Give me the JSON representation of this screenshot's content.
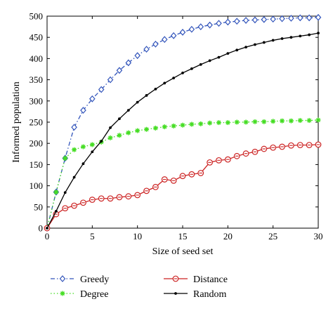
{
  "chart_data": {
    "type": "line",
    "title": "",
    "xlabel": "Size of seed set",
    "ylabel": "Informed population",
    "xlim": [
      0,
      30
    ],
    "ylim": [
      0,
      500
    ],
    "xticks": [
      0,
      5,
      10,
      15,
      20,
      25,
      30
    ],
    "yticks": [
      0,
      50,
      100,
      150,
      200,
      250,
      300,
      350,
      400,
      450,
      500
    ],
    "grid": false,
    "legend_placement": "bottom",
    "series": [
      {
        "name": "Greedy",
        "color": "#3355bb",
        "line_style": "dash-dot",
        "marker": "diamond-open",
        "x": [
          0,
          1,
          2,
          3,
          4,
          5,
          6,
          7,
          8,
          9,
          10,
          11,
          12,
          13,
          14,
          15,
          16,
          17,
          18,
          19,
          20,
          21,
          22,
          23,
          24,
          25,
          26,
          27,
          28,
          29,
          30
        ],
        "y": [
          0,
          85,
          165,
          238,
          278,
          305,
          327,
          350,
          372,
          390,
          407,
          422,
          434,
          445,
          454,
          462,
          469,
          475,
          479,
          483,
          486,
          488,
          490,
          491,
          492,
          493,
          494,
          495,
          496,
          496,
          497
        ]
      },
      {
        "name": "Degree",
        "color": "#44dd22",
        "line_style": "dotted",
        "marker": "star",
        "x": [
          0,
          1,
          2,
          3,
          4,
          5,
          6,
          7,
          8,
          9,
          10,
          11,
          12,
          13,
          14,
          15,
          16,
          17,
          18,
          19,
          20,
          21,
          22,
          23,
          24,
          25,
          26,
          27,
          28,
          29,
          30
        ],
        "y": [
          0,
          85,
          165,
          185,
          192,
          197,
          203,
          213,
          219,
          225,
          230,
          233,
          236,
          239,
          241,
          243,
          245,
          246,
          248,
          249,
          249,
          250,
          250,
          251,
          251,
          252,
          253,
          253,
          254,
          254,
          255
        ]
      },
      {
        "name": "Distance",
        "color": "#cc2222",
        "line_style": "solid",
        "marker": "circle-open",
        "x": [
          0,
          1,
          2,
          3,
          4,
          5,
          6,
          7,
          8,
          9,
          10,
          11,
          12,
          13,
          14,
          15,
          16,
          17,
          18,
          19,
          20,
          21,
          22,
          23,
          24,
          25,
          26,
          27,
          28,
          29,
          30
        ],
        "y": [
          0,
          33,
          47,
          53,
          60,
          67,
          70,
          70,
          73,
          75,
          78,
          88,
          97,
          115,
          112,
          123,
          127,
          130,
          155,
          160,
          162,
          170,
          176,
          180,
          187,
          190,
          192,
          195,
          196,
          196,
          197
        ]
      },
      {
        "name": "Random",
        "color": "#000000",
        "line_style": "solid",
        "marker": "dot",
        "x": [
          0,
          1,
          2,
          3,
          4,
          5,
          6,
          7,
          8,
          9,
          10,
          11,
          12,
          13,
          14,
          15,
          16,
          17,
          18,
          19,
          20,
          21,
          22,
          23,
          24,
          25,
          26,
          27,
          28,
          29,
          30
        ],
        "y": [
          0,
          40,
          84,
          120,
          152,
          180,
          205,
          237,
          258,
          278,
          297,
          313,
          328,
          342,
          354,
          366,
          376,
          386,
          395,
          403,
          412,
          420,
          427,
          433,
          438,
          443,
          447,
          450,
          453,
          456,
          460
        ]
      }
    ]
  }
}
